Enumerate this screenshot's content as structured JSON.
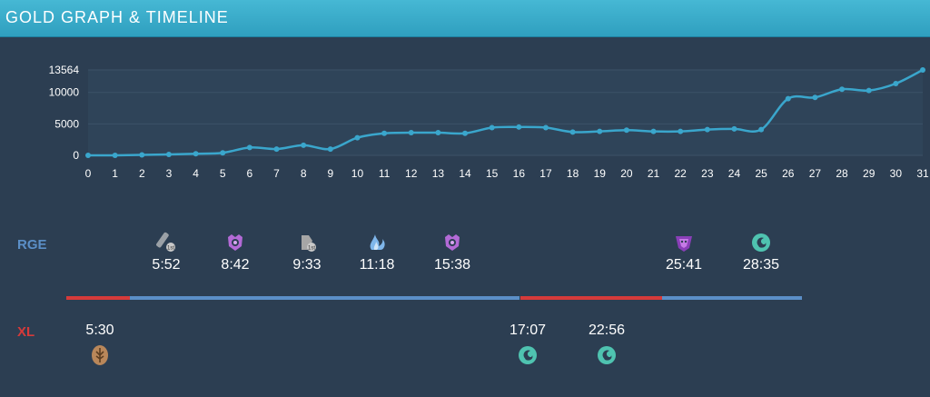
{
  "header": {
    "title": "GOLD GRAPH & TIMELINE"
  },
  "colors": {
    "header_bg": "#3aaed0",
    "line": "#3aa6cc",
    "rge_blue": "#5b8fc7",
    "xl_red": "#d63a3a"
  },
  "chart_data": {
    "type": "area",
    "x": [
      0,
      1,
      2,
      3,
      4,
      5,
      6,
      7,
      8,
      9,
      10,
      11,
      12,
      13,
      14,
      15,
      16,
      17,
      18,
      19,
      20,
      21,
      22,
      23,
      24,
      25,
      26,
      27,
      28,
      29,
      30,
      31
    ],
    "series": [
      {
        "values": [
          0,
          0,
          80,
          150,
          250,
          400,
          1250,
          1000,
          1600,
          1000,
          2800,
          3500,
          3600,
          3600,
          3500,
          4400,
          4500,
          4400,
          3700,
          3800,
          4000,
          3800,
          3800,
          4100,
          4200,
          4100,
          9000,
          9200,
          10500,
          10300,
          11400,
          13564
        ]
      }
    ],
    "yticks": [
      0,
      5000,
      10000,
      13564
    ],
    "ylim": [
      0,
      13564
    ],
    "xlim": [
      0,
      31
    ],
    "grid": true
  },
  "teams": {
    "rge": {
      "label": "RGE"
    },
    "xl": {
      "label": "XL"
    }
  },
  "rge_events": [
    {
      "time": "5:52",
      "icon": "first-tower-icon"
    },
    {
      "time": "8:42",
      "icon": "rift-herald-icon"
    },
    {
      "time": "9:33",
      "icon": "first-inhibitor-icon"
    },
    {
      "time": "11:18",
      "icon": "cloud-drake-icon"
    },
    {
      "time": "15:38",
      "icon": "rift-herald-icon"
    },
    {
      "time": "25:41",
      "icon": "baron-nashor-icon"
    },
    {
      "time": "28:35",
      "icon": "ocean-drake-icon"
    }
  ],
  "xl_events": [
    {
      "time": "5:30",
      "icon": "mountain-drake-icon"
    },
    {
      "time": "17:07",
      "icon": "ocean-drake-icon"
    },
    {
      "time": "22:56",
      "icon": "ocean-drake-icon"
    }
  ],
  "timeline": {
    "segments": [
      {
        "team": "xl",
        "from_min": 0,
        "to_min": 2.6
      },
      {
        "team": "rge",
        "from_min": 2.6,
        "to_min": 18.5
      },
      {
        "team": "xl",
        "from_min": 18.5,
        "to_min": 24.3
      },
      {
        "team": "rge",
        "from_min": 24.3,
        "to_min": 30.0
      }
    ]
  }
}
